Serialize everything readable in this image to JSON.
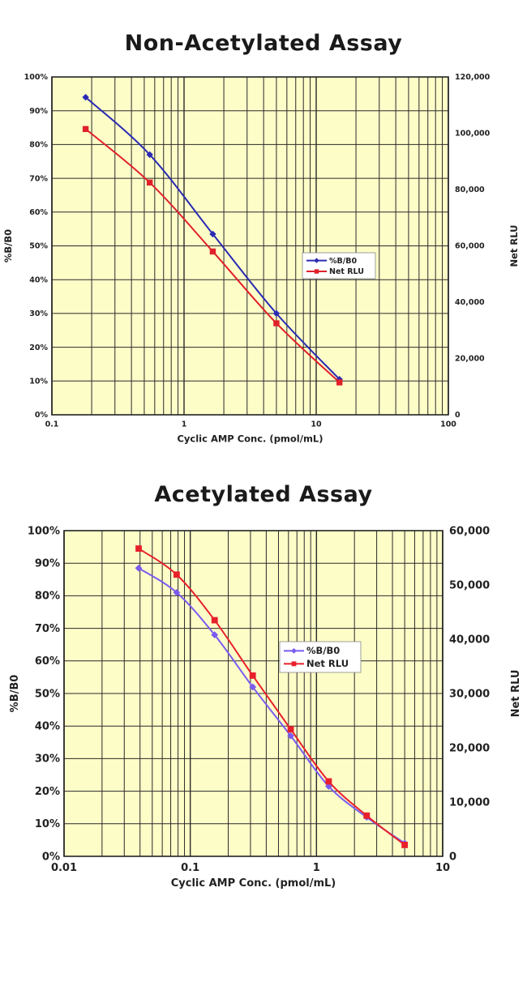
{
  "chart_data": [
    {
      "type": "line",
      "title": "Non-Acetylated Assay",
      "xlabel": "Cyclic AMP Conc. (pmol/mL)",
      "ylabel": "%B/B0",
      "y2label": "Net RLU",
      "x_scale": "log",
      "xlim": [
        0.1,
        100
      ],
      "ylim": [
        0,
        100
      ],
      "y2lim": [
        0,
        120000
      ],
      "x_ticks": [
        "0.1",
        "1",
        "10",
        "100"
      ],
      "y_ticks": [
        "0%",
        "10%",
        "20%",
        "30%",
        "40%",
        "50%",
        "60%",
        "70%",
        "80%",
        "90%",
        "100%"
      ],
      "y2_ticks": [
        "0",
        "20,000",
        "40,000",
        "60,000",
        "80,000",
        "100,000",
        "120,000"
      ],
      "grid": true,
      "legend_position": "right-center",
      "plot_bg": "#fdfdc8",
      "series": [
        {
          "name": "%B/B0",
          "axis": "left",
          "color": "#2a2ab4",
          "marker": "diamond",
          "x": [
            0.18,
            0.55,
            1.65,
            5.0,
            15.0
          ],
          "y": [
            94,
            77,
            53.5,
            30,
            10.5
          ]
        },
        {
          "name": "Net RLU",
          "axis": "right",
          "color": "#e0202a",
          "marker": "square",
          "x": [
            0.18,
            0.55,
            1.65,
            5.0,
            15.0
          ],
          "y": [
            101500,
            82500,
            58000,
            32500,
            11500
          ]
        }
      ]
    },
    {
      "type": "line",
      "title": "Acetylated Assay",
      "xlabel": "Cyclic AMP Conc. (pmol/mL)",
      "ylabel": "%B/B0",
      "y2label": "Net RLU",
      "x_scale": "log",
      "xlim": [
        0.01,
        10
      ],
      "ylim": [
        0,
        100
      ],
      "y2lim": [
        0,
        60000
      ],
      "x_ticks": [
        "0.01",
        "0.1",
        "1",
        "10"
      ],
      "y_ticks": [
        "0%",
        "10%",
        "20%",
        "30%",
        "40%",
        "50%",
        "60%",
        "70%",
        "80%",
        "90%",
        "100%"
      ],
      "y2_ticks": [
        "0",
        "10,000",
        "20,000",
        "30,000",
        "40,000",
        "50,000",
        "60,000"
      ],
      "grid": true,
      "legend_position": "right-center",
      "plot_bg": "#fdfdc8",
      "series": [
        {
          "name": "%B/B0",
          "axis": "left",
          "color": "#7a5cf0",
          "marker": "diamond",
          "x": [
            0.039,
            0.078,
            0.156,
            0.3125,
            0.625,
            1.25,
            2.5,
            5.0
          ],
          "y": [
            88.5,
            81,
            68,
            52,
            37,
            21.5,
            12,
            4
          ]
        },
        {
          "name": "Net RLU",
          "axis": "right",
          "color": "#e8202a",
          "marker": "square",
          "x": [
            0.039,
            0.078,
            0.156,
            0.3125,
            0.625,
            1.25,
            2.5,
            5.0
          ],
          "y": [
            56700,
            51900,
            43500,
            33300,
            23400,
            13800,
            7500,
            2100
          ]
        }
      ]
    }
  ]
}
